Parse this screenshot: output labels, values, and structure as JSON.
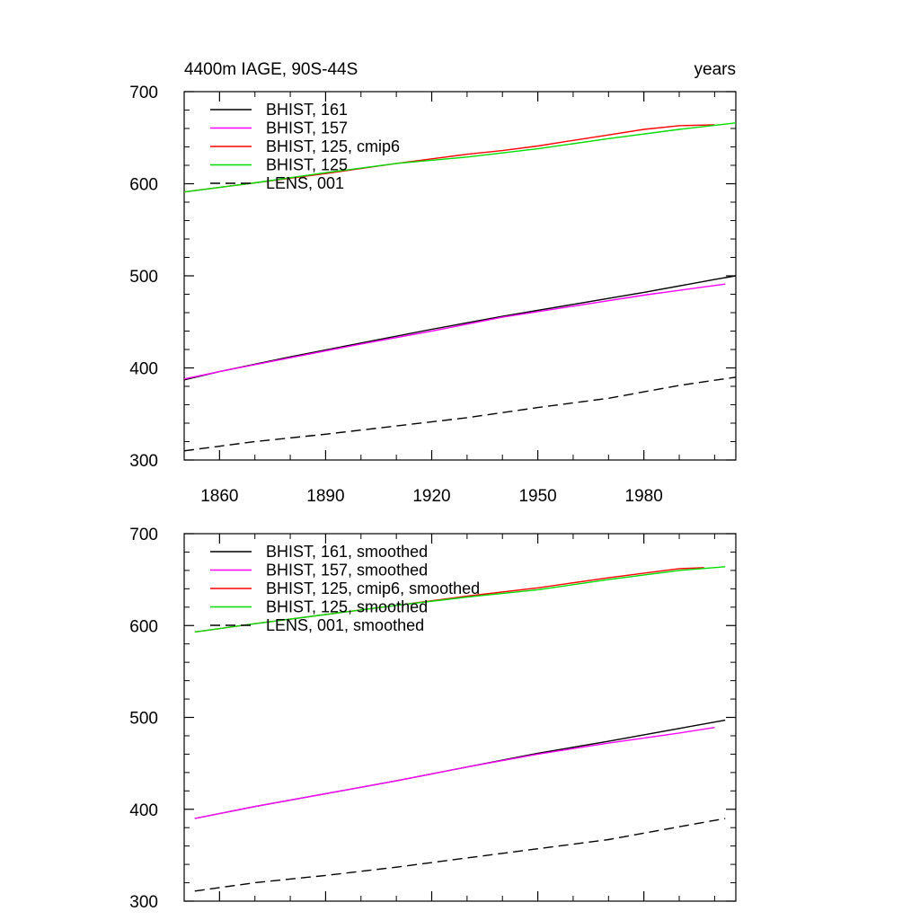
{
  "chart_data": [
    {
      "type": "line",
      "title_left": "4400m IAGE, 90S-44S",
      "title_right": "years",
      "xlim": [
        1850,
        2006
      ],
      "ylim": [
        300,
        700
      ],
      "x_ticks": [
        1860,
        1890,
        1920,
        1950,
        1980
      ],
      "y_ticks": [
        300,
        400,
        500,
        600,
        700
      ],
      "x_tick_labels_visible": true,
      "legend": "top-left",
      "series": [
        {
          "name": "BHIST, 161",
          "color": "#000000",
          "dash": "solid",
          "x": [
            1850,
            1860,
            1880,
            1900,
            1920,
            1940,
            1960,
            1980,
            2000,
            2006
          ],
          "y": [
            387,
            396,
            412,
            427,
            442,
            456,
            469,
            482,
            496,
            500
          ]
        },
        {
          "name": "BHIST, 157",
          "color": "#ff00ff",
          "dash": "solid",
          "x": [
            1850,
            1860,
            1880,
            1900,
            1920,
            1940,
            1960,
            1980,
            2003
          ],
          "y": [
            388,
            396,
            411,
            426,
            440,
            455,
            467,
            479,
            491
          ]
        },
        {
          "name": "BHIST, 125, cmip6",
          "color": "#ff0000",
          "dash": "solid",
          "x": [
            1850,
            1870,
            1890,
            1910,
            1920,
            1930,
            1940,
            1950,
            1960,
            1970,
            1980,
            1990,
            2000
          ],
          "y": [
            591,
            601,
            611,
            622,
            627,
            632,
            636,
            641,
            647,
            653,
            659,
            663,
            664
          ]
        },
        {
          "name": "BHIST, 125",
          "color": "#00dd00",
          "dash": "solid",
          "x": [
            1850,
            1870,
            1890,
            1910,
            1930,
            1950,
            1970,
            1990,
            2006
          ],
          "y": [
            591,
            601,
            612,
            622,
            629,
            638,
            649,
            659,
            666
          ]
        },
        {
          "name": "LENS, 001",
          "color": "#000000",
          "dash": "dashed",
          "x": [
            1850,
            1870,
            1890,
            1910,
            1930,
            1950,
            1970,
            1990,
            2006
          ],
          "y": [
            310,
            320,
            328,
            337,
            346,
            357,
            367,
            381,
            390
          ]
        }
      ]
    },
    {
      "type": "line",
      "xlim": [
        1850,
        2006
      ],
      "ylim": [
        300,
        700
      ],
      "x_ticks": [
        1860,
        1890,
        1920,
        1950,
        1980
      ],
      "y_ticks": [
        300,
        400,
        500,
        600,
        700
      ],
      "x_tick_labels_visible": false,
      "legend": "top-left",
      "series": [
        {
          "name": "BHIST, 161, smoothed",
          "color": "#000000",
          "dash": "solid",
          "x": [
            1853,
            1870,
            1890,
            1910,
            1930,
            1950,
            1970,
            1990,
            2003
          ],
          "y": [
            390,
            403,
            417,
            431,
            446,
            461,
            474,
            488,
            497
          ]
        },
        {
          "name": "BHIST, 157, smoothed",
          "color": "#ff00ff",
          "dash": "solid",
          "x": [
            1853,
            1870,
            1890,
            1910,
            1930,
            1950,
            1970,
            1990,
            2000
          ],
          "y": [
            390,
            403,
            417,
            431,
            446,
            460,
            472,
            483,
            489
          ]
        },
        {
          "name": "BHIST, 125, cmip6, smoothed",
          "color": "#ff0000",
          "dash": "solid",
          "x": [
            1853,
            1870,
            1890,
            1910,
            1930,
            1950,
            1970,
            1990,
            1997
          ],
          "y": [
            593,
            602,
            612,
            622,
            632,
            641,
            652,
            662,
            663
          ]
        },
        {
          "name": "BHIST, 125, smoothed",
          "color": "#00dd00",
          "dash": "solid",
          "x": [
            1853,
            1870,
            1890,
            1910,
            1930,
            1950,
            1970,
            1990,
            2003
          ],
          "y": [
            593,
            602,
            612,
            622,
            631,
            639,
            650,
            660,
            664
          ]
        },
        {
          "name": "LENS, 001, smoothed",
          "color": "#000000",
          "dash": "dashed",
          "x": [
            1853,
            1870,
            1890,
            1910,
            1930,
            1950,
            1970,
            1990,
            2003
          ],
          "y": [
            311,
            320,
            328,
            337,
            347,
            357,
            367,
            381,
            390
          ]
        }
      ]
    }
  ]
}
